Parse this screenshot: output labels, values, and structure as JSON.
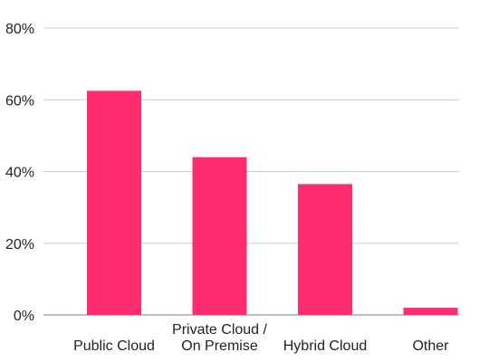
{
  "chart_data": {
    "type": "bar",
    "categories": [
      "Public Cloud",
      "Private Cloud / On Premise",
      "Hybrid Cloud",
      "Other"
    ],
    "category_lines": [
      [
        "Public Cloud"
      ],
      [
        "Private Cloud /",
        "On Premise"
      ],
      [
        "Hybrid Cloud"
      ],
      [
        "Other"
      ]
    ],
    "values": [
      62.5,
      44,
      36.5,
      2
    ],
    "ylim": [
      0,
      80
    ],
    "yticks": [
      0,
      20,
      40,
      60,
      80
    ],
    "ytick_labels": [
      "0%",
      "20%",
      "40%",
      "60%",
      "80%"
    ],
    "title": "",
    "xlabel": "",
    "ylabel": "",
    "grid": true,
    "bar_color": "#ff2d6f"
  }
}
